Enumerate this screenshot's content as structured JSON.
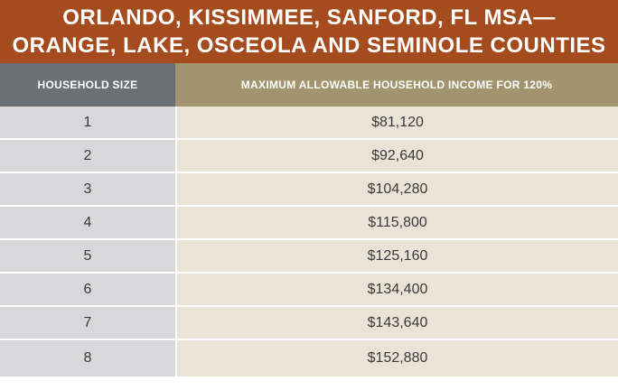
{
  "title": {
    "line1": "ORLANDO, KISSIMMEE, SANFORD, FL MSA—",
    "line2": "ORANGE, LAKE, OSCEOLA AND SEMINOLE COUNTIES"
  },
  "table": {
    "headers": {
      "size": "HOUSEHOLD SIZE",
      "income": "MAXIMUM ALLOWABLE HOUSEHOLD INCOME FOR 120%"
    },
    "rows": [
      {
        "size": "1",
        "income": "$81,120"
      },
      {
        "size": "2",
        "income": "$92,640"
      },
      {
        "size": "3",
        "income": "$104,280"
      },
      {
        "size": "4",
        "income": "$115,800"
      },
      {
        "size": "5",
        "income": "$125,160"
      },
      {
        "size": "6",
        "income": "$134,400"
      },
      {
        "size": "7",
        "income": "$143,640"
      },
      {
        "size": "8",
        "income": "$152,880"
      }
    ]
  }
}
